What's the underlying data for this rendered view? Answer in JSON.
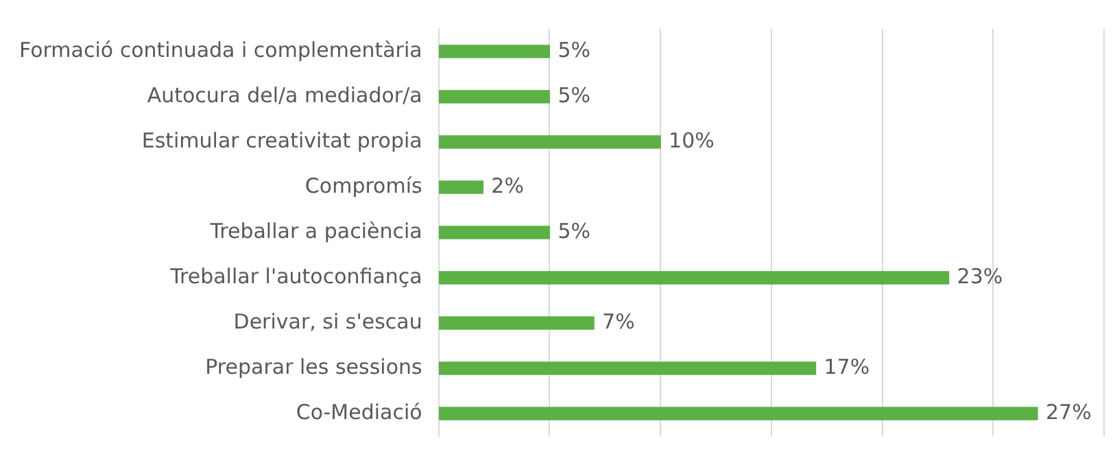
{
  "chart_data": {
    "type": "bar",
    "orientation": "horizontal",
    "categories": [
      "Formació continuada i complementària",
      "Autocura del/a mediador/a",
      "Estimular creativitat propia",
      "Compromís",
      "Treballar a paciència",
      "Treballar l'autoconfiança",
      "Derivar, si s'escau",
      "Preparar les sessions",
      "Co-Mediació"
    ],
    "values": [
      5,
      5,
      10,
      2,
      5,
      23,
      7,
      17,
      27
    ],
    "value_labels": [
      "5%",
      "5%",
      "10%",
      "2%",
      "5%",
      "23%",
      "7%",
      "17%",
      "27%"
    ],
    "color": "#5bb046",
    "xlim": [
      0,
      30
    ],
    "xticks": [
      {
        "value": 0,
        "label": null
      },
      {
        "value": 5,
        "label": null
      },
      {
        "value": 10,
        "label": null
      },
      {
        "value": 15,
        "label": null
      },
      {
        "value": 20,
        "label": null
      },
      {
        "value": 25,
        "label": null
      },
      {
        "value": 30,
        "label": null
      }
    ],
    "grid": "x",
    "legend": false,
    "tick_labels": "y"
  }
}
